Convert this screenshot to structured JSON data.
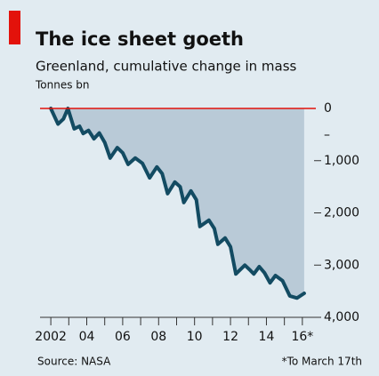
{
  "chart_data": {
    "type": "area-line",
    "title": "The ice sheet goeth",
    "subtitle": "Greenland, cumulative change in mass",
    "unit_label": "Tonnes bn",
    "source": "Source: NASA",
    "note": "*To March 17th",
    "negative_sign": "–",
    "x": [
      2002.0,
      2002.4,
      2002.7,
      2002.95,
      2003.3,
      2003.6,
      2003.8,
      2004.1,
      2004.4,
      2004.7,
      2005.0,
      2005.3,
      2005.7,
      2006.0,
      2006.3,
      2006.7,
      2007.1,
      2007.5,
      2007.9,
      2008.2,
      2008.5,
      2008.9,
      2009.2,
      2009.4,
      2009.8,
      2010.1,
      2010.3,
      2010.8,
      2011.1,
      2011.3,
      2011.7,
      2012.0,
      2012.3,
      2012.8,
      2013.1,
      2013.3,
      2013.6,
      2013.9,
      2014.2,
      2014.5,
      2014.9,
      2015.3,
      2015.7,
      2016.1
    ],
    "values": [
      0,
      -300,
      -200,
      0,
      -390,
      -340,
      -480,
      -420,
      -580,
      -470,
      -650,
      -950,
      -750,
      -850,
      -1070,
      -950,
      -1050,
      -1330,
      -1120,
      -1250,
      -1630,
      -1410,
      -1500,
      -1800,
      -1580,
      -1750,
      -2260,
      -2140,
      -2300,
      -2600,
      -2480,
      -2650,
      -3170,
      -3000,
      -3100,
      -3170,
      -3030,
      -3150,
      -3340,
      -3200,
      -3300,
      -3590,
      -3630,
      -3540
    ],
    "line_color": "#134b62",
    "fill_color": "#b9cad7",
    "zero_line_color": "#e3120b",
    "xlim": [
      2001.4,
      2016.75
    ],
    "ylim": [
      -4000,
      0
    ],
    "yticks": [
      0,
      {
        "value": -1000,
        "label": "1,000"
      },
      {
        "value": -2000,
        "label": "2,000"
      },
      {
        "value": -3000,
        "label": "3,000"
      },
      {
        "value": -4000,
        "label": "4,000"
      }
    ],
    "xticks": [
      {
        "value": 2002,
        "label": "2002"
      },
      {
        "value": 2004,
        "label": "04"
      },
      {
        "value": 2006,
        "label": "06"
      },
      {
        "value": 2008,
        "label": "08"
      },
      {
        "value": 2010,
        "label": "10"
      },
      {
        "value": 2012,
        "label": "12"
      },
      {
        "value": 2014,
        "label": "14"
      },
      {
        "value": 2016,
        "label": "16*"
      }
    ],
    "xminor_ticks": [
      2003,
      2005,
      2007,
      2009,
      2011,
      2013,
      2015
    ]
  }
}
